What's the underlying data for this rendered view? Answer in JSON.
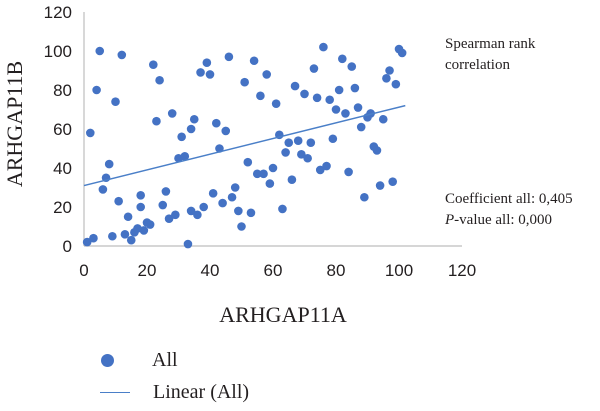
{
  "chart_data": {
    "type": "scatter",
    "xlabel": "ARHGAP11A",
    "ylabel": "ARHGAP11B",
    "xlim": [
      0,
      120
    ],
    "ylim": [
      0,
      120
    ],
    "xticks": [
      "0",
      "20",
      "40",
      "60",
      "80",
      "100",
      "120"
    ],
    "yticks": [
      "0",
      "20",
      "40",
      "60",
      "80",
      "100",
      "120"
    ],
    "grid": false,
    "legend_position": "bottom-left",
    "series": [
      {
        "name": "All",
        "color": "#4472c4",
        "points": [
          [
            1,
            2
          ],
          [
            2,
            58
          ],
          [
            3,
            4
          ],
          [
            4,
            80
          ],
          [
            5,
            100
          ],
          [
            6,
            29
          ],
          [
            7,
            35
          ],
          [
            8,
            42
          ],
          [
            9,
            5
          ],
          [
            10,
            74
          ],
          [
            11,
            23
          ],
          [
            12,
            98
          ],
          [
            13,
            6
          ],
          [
            14,
            15
          ],
          [
            15,
            3
          ],
          [
            16,
            7
          ],
          [
            17,
            9
          ],
          [
            18,
            26
          ],
          [
            18,
            20
          ],
          [
            19,
            8
          ],
          [
            20,
            12
          ],
          [
            21,
            11
          ],
          [
            22,
            93
          ],
          [
            23,
            64
          ],
          [
            24,
            85
          ],
          [
            25,
            21
          ],
          [
            26,
            28
          ],
          [
            27,
            14
          ],
          [
            28,
            68
          ],
          [
            29,
            16
          ],
          [
            30,
            45
          ],
          [
            31,
            56
          ],
          [
            32,
            46
          ],
          [
            33,
            1
          ],
          [
            34,
            60
          ],
          [
            34,
            18
          ],
          [
            35,
            65
          ],
          [
            36,
            16
          ],
          [
            37,
            89
          ],
          [
            38,
            20
          ],
          [
            39,
            94
          ],
          [
            40,
            88
          ],
          [
            41,
            27
          ],
          [
            42,
            63
          ],
          [
            43,
            50
          ],
          [
            44,
            22
          ],
          [
            45,
            59
          ],
          [
            46,
            97
          ],
          [
            47,
            25
          ],
          [
            48,
            30
          ],
          [
            49,
            18
          ],
          [
            50,
            10
          ],
          [
            51,
            84
          ],
          [
            52,
            43
          ],
          [
            53,
            17
          ],
          [
            54,
            95
          ],
          [
            55,
            37
          ],
          [
            56,
            77
          ],
          [
            57,
            37
          ],
          [
            58,
            88
          ],
          [
            59,
            32
          ],
          [
            60,
            40
          ],
          [
            61,
            73
          ],
          [
            62,
            57
          ],
          [
            63,
            19
          ],
          [
            64,
            48
          ],
          [
            65,
            53
          ],
          [
            66,
            34
          ],
          [
            67,
            82
          ],
          [
            68,
            54
          ],
          [
            69,
            47
          ],
          [
            70,
            78
          ],
          [
            71,
            45
          ],
          [
            72,
            53
          ],
          [
            73,
            91
          ],
          [
            74,
            76
          ],
          [
            75,
            39
          ],
          [
            76,
            102
          ],
          [
            77,
            41
          ],
          [
            78,
            75
          ],
          [
            79,
            55
          ],
          [
            80,
            70
          ],
          [
            81,
            80
          ],
          [
            82,
            96
          ],
          [
            83,
            68
          ],
          [
            84,
            38
          ],
          [
            85,
            92
          ],
          [
            86,
            81
          ],
          [
            87,
            71
          ],
          [
            88,
            61
          ],
          [
            89,
            25
          ],
          [
            90,
            66
          ],
          [
            91,
            68
          ],
          [
            92,
            51
          ],
          [
            93,
            49
          ],
          [
            94,
            31
          ],
          [
            95,
            65
          ],
          [
            96,
            86
          ],
          [
            97,
            90
          ],
          [
            98,
            33
          ],
          [
            99,
            83
          ],
          [
            100,
            101
          ],
          [
            101,
            99
          ]
        ]
      },
      {
        "name": "Linear (All)",
        "type": "line",
        "color": "#4a7fc8",
        "x": [
          0,
          102
        ],
        "y": [
          31,
          72
        ]
      }
    ]
  },
  "annotations": {
    "title_line1": "Spearman rank",
    "title_line2": "correlation",
    "coef": "Coefficient all: 0,405",
    "pval_italic": "P",
    "pval_rest": "-value all: 0,000"
  },
  "legend": {
    "items": [
      "All",
      "Linear (All)"
    ]
  }
}
